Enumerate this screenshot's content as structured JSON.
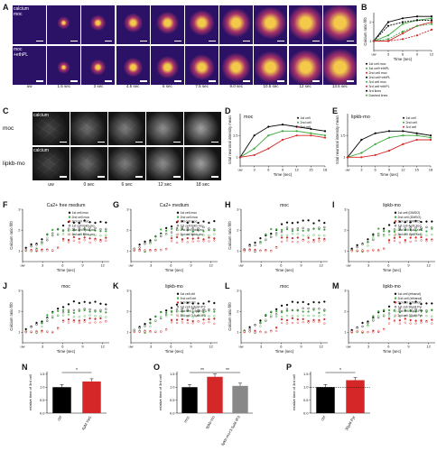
{
  "panels": {
    "A": {
      "label": "A",
      "rows": [
        "calcium\nmoc",
        "moc\n+ethPL"
      ],
      "times": [
        "uw",
        "1.5 sec",
        "3 sec",
        "4.5 sec",
        "6 sec",
        "7.5 sec",
        "9.0 sec",
        "10.5 sec",
        "12 sec",
        "13.5 sec"
      ],
      "colors": {
        "bg": "#2b1266",
        "mid": "#a8326a",
        "hi": "#f4c94a"
      }
    },
    "B": {
      "label": "B",
      "ylabel": "Calcium ratio f/f0",
      "xlabel": "Time (sec)",
      "legend": [
        "1st cell moc",
        "1st cell+ethPL",
        "2nd cell moc",
        "2nd cell+ethPL",
        "3rd cell moc",
        "3rd cell+ethPL",
        "3rd lines",
        "Dashed lines"
      ]
    },
    "C": {
      "label": "C",
      "rows": [
        "moc",
        "lipkb-mo"
      ],
      "row_titles": [
        "calcium",
        "calcium"
      ],
      "times": [
        "uw",
        "0 sec",
        "6 sec",
        "12 sec",
        "18 sec"
      ]
    },
    "D": {
      "label": "D",
      "title": "moc",
      "ylabel": "total neuronal intensity mean",
      "xlabel": "Time (sec)",
      "legend": [
        "1st cell",
        "2nd cell",
        "3rd cell"
      ]
    },
    "E": {
      "label": "E",
      "title": "lipkb-mo",
      "ylabel": "total neuronal intensity mean",
      "xlabel": "Time (sec)",
      "legend": [
        "1st cell",
        "2nd cell",
        "3rd cell"
      ]
    },
    "F": {
      "label": "F",
      "title": "Ca2+ free medium",
      "ylabel": "Calcium ratio f/f0",
      "xlabel": "Time (sec)",
      "legend": [
        "1st cell moc",
        "2nd cell moc",
        "3rd cell moc",
        "1st cell lipkb-mo",
        "2nd cell lipkb-mo",
        "3rd cell lipkb-mo"
      ]
    },
    "G": {
      "label": "G",
      "title": "Ca2+ medium",
      "ylabel": "",
      "xlabel": "Time (sec)",
      "legend": [
        "1st cell moc",
        "2nd cell moc",
        "3rd cell moc",
        "1st cell lipkb-mo",
        "2nd cell lipkb-mo",
        "3rd cell lipkb-mo"
      ]
    },
    "H": {
      "label": "H",
      "title": "moc",
      "ylabel": "Calcium ratio f/f0",
      "xlabel": "Time (sec)"
    },
    "I": {
      "label": "I",
      "title": "lipkb-mo",
      "ylabel": "",
      "xlabel": "Time (sec)",
      "legend": [
        "1st cell (DMSO)",
        "2nd cell (DMSO)",
        "3rd cell (DMSO)",
        "1st cell 4µM XeC",
        "2nd cell 4µM XeC",
        "3rd cell 4µM XeC"
      ]
    },
    "J": {
      "label": "J",
      "title": "moc",
      "ylabel": "Calcium ratio f/f0",
      "xlabel": "Time (sec)"
    },
    "K": {
      "label": "K",
      "title": "lipkb-mo",
      "ylabel": "",
      "xlabel": "Time (sec)",
      "legend": [
        "1st cell ctrl",
        "2nd cell ctrl",
        "3rd cell ctrl",
        "1st cell 3.5µM IP3",
        "2nd cell 3.5µM IP3",
        "3rd cell 3.5µM IP3"
      ]
    },
    "L": {
      "label": "L",
      "title": "moc",
      "ylabel": "Calcium ratio f/f0",
      "xlabel": "Time (sec)"
    },
    "M": {
      "label": "M",
      "title": "lipkb-mo",
      "ylabel": "",
      "xlabel": "Time (sec)",
      "legend": [
        "1st cell (ethanol)",
        "2nd cell (ethanol)",
        "3rd cell (ethanol)",
        "1st cell 30µM Pyr",
        "2nd cell 30µM Pyr",
        "3rd cell 30µM Pyr"
      ]
    },
    "N": {
      "label": "N",
      "ylabel": "relative time of 3rd cell",
      "sig": "*"
    },
    "O": {
      "label": "O",
      "ylabel": "relative time of 3rd cell",
      "sig": [
        "**",
        "**"
      ]
    },
    "P": {
      "label": "P",
      "ylabel": "relative time of 3rd cell",
      "sig": "*"
    }
  },
  "chart_data": [
    {
      "type": "line",
      "panel": "B",
      "x": [
        0,
        3,
        6,
        9,
        12
      ],
      "series": [
        {
          "name": "1st cell moc",
          "values": [
            1.0,
            2.0,
            2.2,
            2.3,
            2.3
          ]
        },
        {
          "name": "2nd cell moc",
          "values": [
            1.0,
            1.3,
            1.9,
            2.1,
            2.2
          ]
        },
        {
          "name": "3rd cell moc",
          "values": [
            1.0,
            1.0,
            1.4,
            1.8,
            2.0
          ]
        },
        {
          "name": "1st cell+ethPL",
          "values": [
            1.0,
            1.8,
            2.0,
            2.1,
            2.1
          ]
        },
        {
          "name": "2nd cell+ethPL",
          "values": [
            1.0,
            1.1,
            1.5,
            1.8,
            1.9
          ]
        },
        {
          "name": "3rd cell+ethPL",
          "values": [
            1.0,
            1.0,
            1.1,
            1.3,
            1.6
          ]
        }
      ]
    },
    {
      "type": "line",
      "panel": "D",
      "x": [
        0,
        3,
        6,
        9,
        12,
        15,
        18
      ],
      "series": [
        {
          "name": "1st cell",
          "values": [
            1.0,
            1.5,
            1.7,
            1.75,
            1.7,
            1.65,
            1.6
          ]
        },
        {
          "name": "2nd cell",
          "values": [
            1.0,
            1.2,
            1.5,
            1.6,
            1.6,
            1.55,
            1.5
          ]
        },
        {
          "name": "3rd cell",
          "values": [
            1.0,
            1.05,
            1.2,
            1.4,
            1.5,
            1.5,
            1.45
          ]
        }
      ]
    },
    {
      "type": "line",
      "panel": "E",
      "x": [
        0,
        3,
        6,
        9,
        12,
        15,
        18
      ],
      "series": [
        {
          "name": "1st cell",
          "values": [
            1.0,
            1.4,
            1.55,
            1.6,
            1.6,
            1.55,
            1.5
          ]
        },
        {
          "name": "2nd cell",
          "values": [
            1.0,
            1.1,
            1.3,
            1.45,
            1.5,
            1.5,
            1.45
          ]
        },
        {
          "name": "3rd cell",
          "values": [
            1.0,
            1.0,
            1.05,
            1.15,
            1.3,
            1.4,
            1.4
          ]
        }
      ]
    },
    {
      "type": "scatter",
      "panel": "F",
      "x": [
        0,
        3,
        6,
        9,
        12
      ]
    },
    {
      "type": "scatter",
      "panel": "G",
      "x": [
        0,
        3,
        6,
        9,
        12
      ]
    },
    {
      "type": "scatter",
      "panel": "H",
      "x": [
        0,
        3,
        6,
        9,
        12
      ]
    },
    {
      "type": "scatter",
      "panel": "I",
      "x": [
        0,
        3,
        6,
        9,
        12
      ]
    },
    {
      "type": "scatter",
      "panel": "J",
      "x": [
        0,
        3,
        6,
        9,
        12
      ]
    },
    {
      "type": "scatter",
      "panel": "K",
      "x": [
        0,
        3,
        6,
        9,
        12
      ]
    },
    {
      "type": "scatter",
      "panel": "L",
      "x": [
        0,
        3,
        6,
        9,
        12
      ]
    },
    {
      "type": "scatter",
      "panel": "M",
      "x": [
        0,
        3,
        6,
        9,
        12
      ]
    },
    {
      "type": "bar",
      "panel": "N",
      "categories": [
        "ctrl",
        "4µM XeC"
      ],
      "values": [
        1.0,
        1.22
      ],
      "colors": [
        "#000000",
        "#d62728"
      ]
    },
    {
      "type": "bar",
      "panel": "O",
      "categories": [
        "moc",
        "lipkb-mo",
        "lipkb-mo+3.5µM IP3"
      ],
      "values": [
        1.0,
        1.4,
        1.05
      ],
      "colors": [
        "#000000",
        "#d62728",
        "#888888"
      ]
    },
    {
      "type": "bar",
      "panel": "P",
      "categories": [
        "ctrl",
        "30µM Pyr"
      ],
      "values": [
        1.0,
        1.27
      ],
      "colors": [
        "#000000",
        "#d62728"
      ]
    }
  ]
}
